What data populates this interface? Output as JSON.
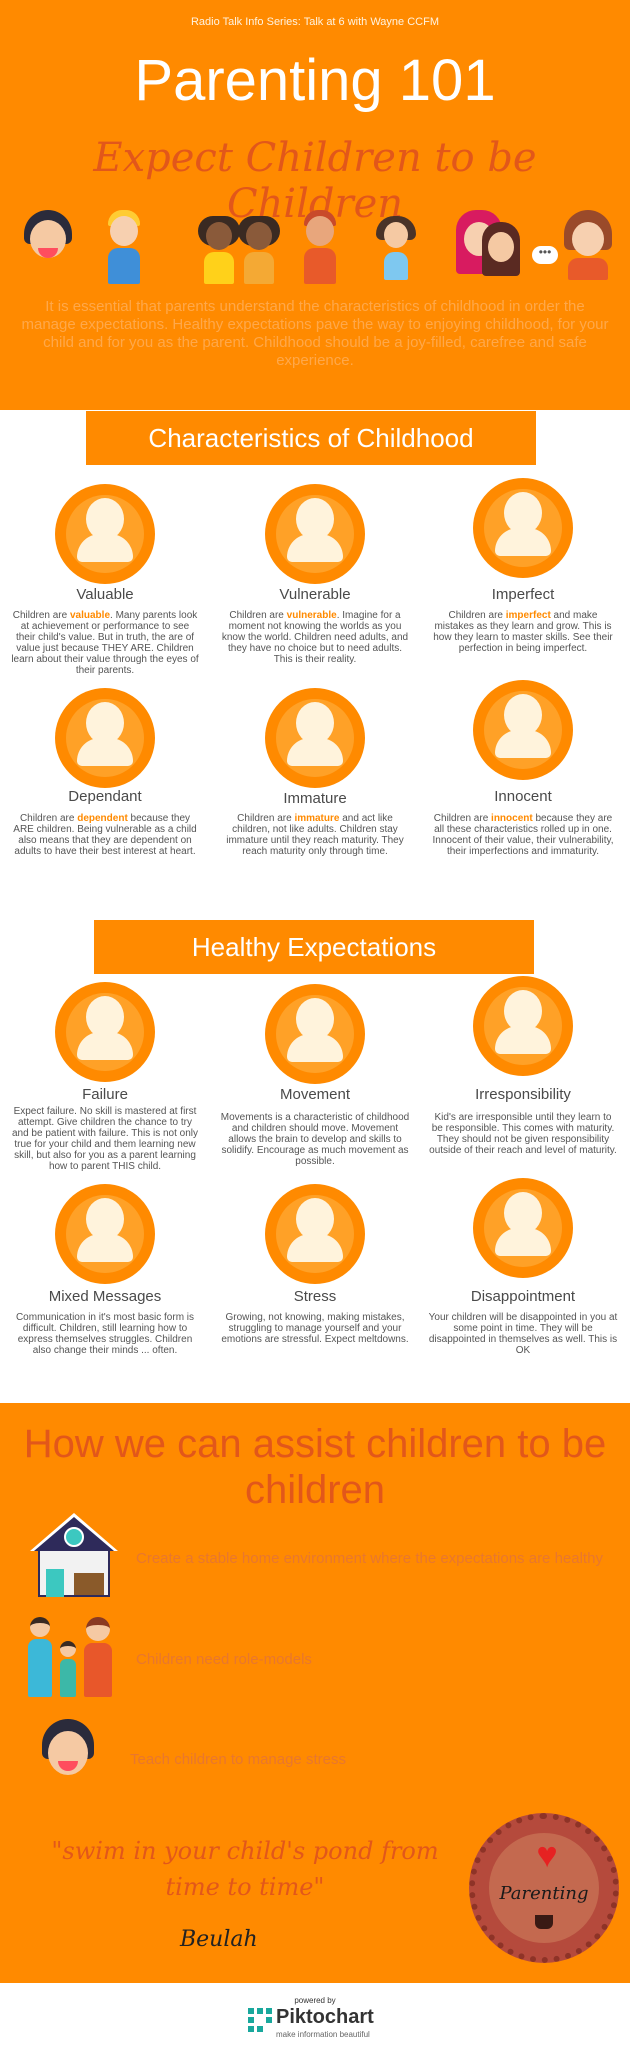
{
  "header": {
    "series": "Radio Talk Info Series: Talk at 6 with Wayne CCFM",
    "title": "Parenting 101",
    "subtitle": "Expect Children to be Children",
    "intro": "It is essential that parents understand the characteristics of childhood in order the manage expectations. Healthy expectations pave the way to enjoying childhood, for your child and for you as the parent. Childhood should be a joy-filled, carefree and safe experience."
  },
  "characteristics": {
    "heading": "Characteristics of Childhood",
    "cards": [
      {
        "title": "Valuable",
        "pre": "Children are ",
        "hl": "valuable",
        "post": ". Many parents look at achievement or performance to see their child's value. But in truth, the are of value just because THEY ARE. Children learn about their value through the eyes of their parents."
      },
      {
        "title": "Vulnerable",
        "pre": "Children are ",
        "hl": "vulnerable",
        "post": ". Imagine for a moment not knowing the worlds as you know the world. Children need adults, and they have no choice but to need adults. This is their reality."
      },
      {
        "title": "Imperfect",
        "pre": "Children are ",
        "hl": "imperfect",
        "post": " and make mistakes as they learn and grow. This is how they learn to master skills. See their perfection in being imperfect."
      },
      {
        "title": "Dependant",
        "pre": "Children are ",
        "hl": "dependent",
        "post": " because they ARE children. Being vulnerable as a child also means that they are dependent on adults to have their best interest at heart."
      },
      {
        "title": "Immature",
        "pre": "Children are ",
        "hl": "immature",
        "post": " and act like children, not like adults. Children stay immature until they reach maturity. They reach maturity only through time."
      },
      {
        "title": "Innocent",
        "pre": "Children are ",
        "hl": "innocent",
        "post": " because they are all these characteristics rolled up in one. Innocent of their value, their vulnerability, their imperfections and immaturity."
      }
    ]
  },
  "expectations": {
    "heading": "Healthy Expectations",
    "cards": [
      {
        "title": "Failure",
        "desc": "Expect failure. No skill is mastered at first attempt. Give children the chance to try and be patient with failure. This is not only true for your child and them learning new skill, but also for you as a parent learning how to parent THIS child."
      },
      {
        "title": "Movement",
        "desc": "Movements is a characteristic of childhood and children should move. Movement allows the brain to develop and skills to solidify. Encourage as much movement as possible."
      },
      {
        "title": "Irresponsibility",
        "desc": "Kid's are irresponsible until they learn to be responsible. This comes with maturity. They should not be given responsibility outside of their reach and level of maturity."
      },
      {
        "title": "Mixed Messages",
        "desc": "Communication in it's most basic form is difficult. Children, still learning how to express themselves struggles. Children also change their minds ... often."
      },
      {
        "title": "Stress",
        "desc": "Growing, not knowing, making mistakes, struggling to manage yourself and your emotions are stressful. Expect meltdowns."
      },
      {
        "title": "Disappointment",
        "desc": "Your children will be disappointed in you at some point in time. They will be disappointed in themselves as well. This is OK"
      }
    ]
  },
  "assist": {
    "heading": "How we can assist children to be children",
    "items": [
      "Create a stable home environment where the expectations are healthy",
      "Children need role-models",
      "Teach children to manage stress"
    ],
    "quote": "\"swim in your child's pond from time to time\"",
    "author": "Beulah",
    "badge": "Parenting"
  },
  "footer": {
    "powered": "powered by",
    "brand": "Piktochart",
    "tagline": "make information beautiful"
  },
  "colors": {
    "accent": "#ff8a00",
    "title_red": "#e2571a",
    "highlight": "#ff8a00"
  }
}
